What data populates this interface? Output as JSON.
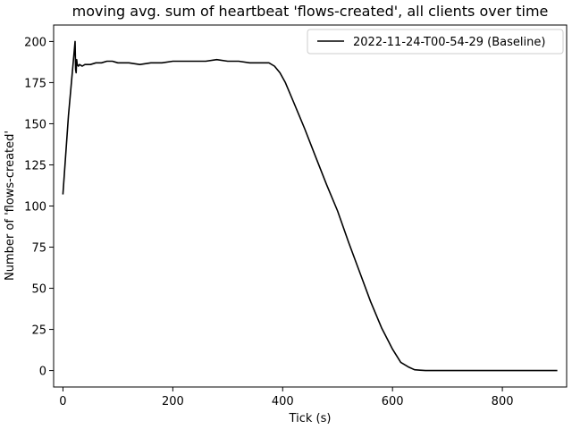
{
  "chart_data": {
    "type": "line",
    "title": "moving avg. sum of heartbeat 'flows-created', all clients over time",
    "xlabel": "Tick (s)",
    "ylabel": "Number of 'flows-created'",
    "xlim": [
      -17,
      917
    ],
    "ylim": [
      -10,
      210
    ],
    "xticks": [
      0,
      200,
      400,
      600,
      800
    ],
    "yticks": [
      0,
      25,
      50,
      75,
      100,
      125,
      150,
      175,
      200
    ],
    "grid": false,
    "legend_position": "top-right",
    "series": [
      {
        "name": "2022-11-24-T00-54-29 (Baseline)",
        "color": "#000000",
        "x": [
          0,
          10,
          20,
          22,
          23,
          24,
          25,
          26,
          28,
          30,
          35,
          40,
          50,
          60,
          70,
          80,
          90,
          100,
          120,
          140,
          160,
          180,
          200,
          220,
          240,
          260,
          280,
          300,
          320,
          340,
          360,
          375,
          385,
          395,
          405,
          420,
          440,
          460,
          480,
          500,
          520,
          540,
          560,
          580,
          600,
          615,
          630,
          640,
          650,
          660,
          670,
          680,
          700,
          750,
          800,
          850,
          900
        ],
        "y": [
          107,
          155,
          192,
          200,
          183,
          181,
          189,
          186,
          185,
          186,
          185,
          186,
          186,
          187,
          187,
          188,
          188,
          187,
          187,
          186,
          187,
          187,
          188,
          188,
          188,
          188,
          189,
          188,
          188,
          187,
          187,
          187,
          185,
          181,
          175,
          163,
          147,
          130,
          113,
          97,
          78,
          60,
          42,
          26,
          13,
          5,
          2,
          0.5,
          0.2,
          0,
          0,
          0,
          0,
          0,
          0,
          0,
          0
        ]
      }
    ]
  }
}
